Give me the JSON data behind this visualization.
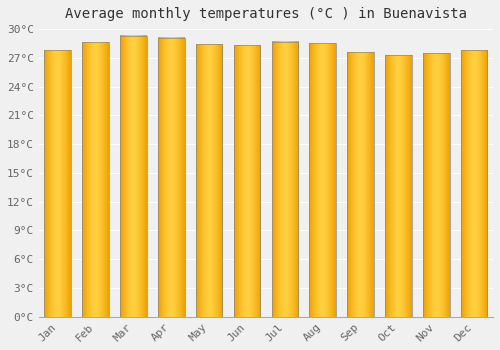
{
  "title": "Average monthly temperatures (°C ) in Buenavista",
  "months": [
    "Jan",
    "Feb",
    "Mar",
    "Apr",
    "May",
    "Jun",
    "Jul",
    "Aug",
    "Sep",
    "Oct",
    "Nov",
    "Dec"
  ],
  "values": [
    27.8,
    28.6,
    29.3,
    29.1,
    28.4,
    28.3,
    28.7,
    28.5,
    27.6,
    27.3,
    27.5,
    27.8
  ],
  "ylim": [
    0,
    30
  ],
  "yticks": [
    0,
    3,
    6,
    9,
    12,
    15,
    18,
    21,
    24,
    27,
    30
  ],
  "ytick_labels": [
    "0°C",
    "3°C",
    "6°C",
    "9°C",
    "12°C",
    "15°C",
    "18°C",
    "21°C",
    "24°C",
    "27°C",
    "30°C"
  ],
  "background_color": "#f0f0f0",
  "grid_color": "#ffffff",
  "bar_color_center": "#FFD040",
  "bar_color_edge": "#F0A000",
  "bar_edge_color": "#888888",
  "title_fontsize": 10,
  "tick_fontsize": 8,
  "bar_width": 0.7
}
